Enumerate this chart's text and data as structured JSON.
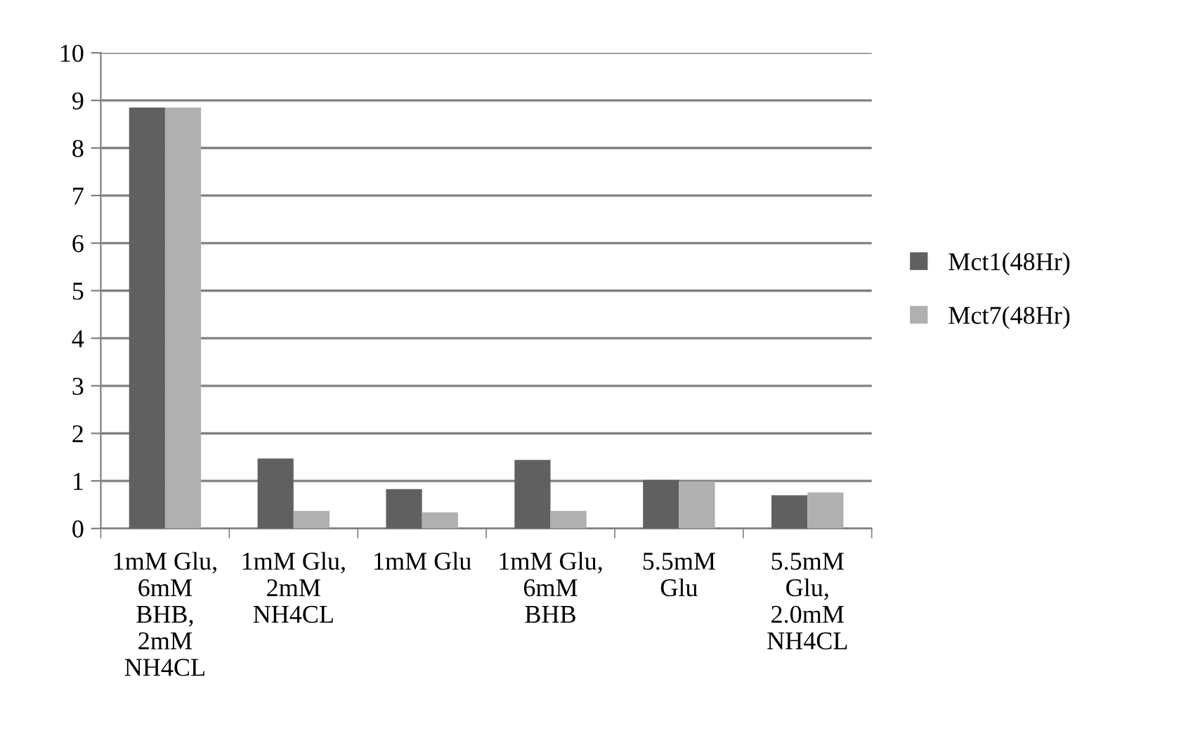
{
  "chart_data": {
    "type": "bar",
    "categories": [
      "1mM Glu,\n6mM\nBHB,\n2mM\nNH4CL",
      "1mM Glu,\n2mM\nNH4CL",
      "1mM Glu",
      "1mM Glu,\n6mM\nBHB",
      "5.5mM\nGlu",
      "5.5mM\nGlu,\n2.0mM\nNH4CL"
    ],
    "series": [
      {
        "name": "Mct1(48Hr)",
        "color": "#606060",
        "values": [
          8.85,
          1.47,
          0.83,
          1.44,
          1.02,
          0.7
        ]
      },
      {
        "name": "Mct7(48Hr)",
        "color": "#b0b0b0",
        "values": [
          8.85,
          0.37,
          0.34,
          0.37,
          0.99,
          0.76
        ]
      }
    ],
    "ylim": [
      0,
      10
    ],
    "yticks": [
      0,
      1,
      2,
      3,
      4,
      5,
      6,
      7,
      8,
      9,
      10
    ],
    "grid": "y",
    "legend": "right"
  }
}
